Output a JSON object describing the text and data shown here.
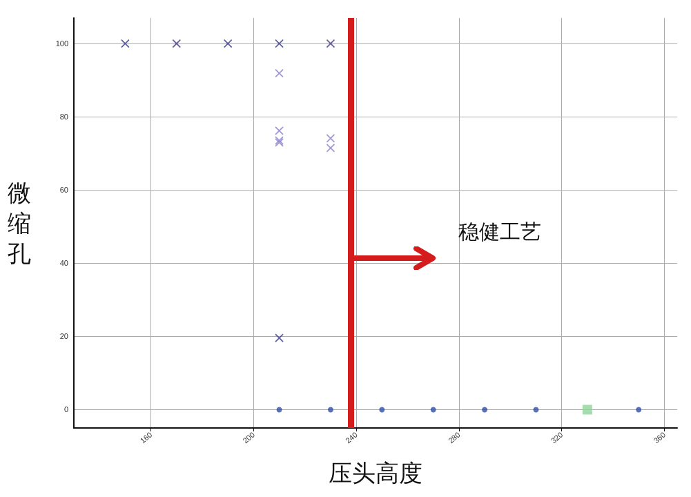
{
  "chart_data": {
    "type": "scatter",
    "xlabel": "压头高度",
    "ylabel": "微缩孔",
    "xlim": [
      130,
      365
    ],
    "xticks": [
      160,
      200,
      240,
      280,
      320,
      360
    ],
    "ylim": [
      -5,
      107
    ],
    "yticks": [
      0,
      20,
      40,
      60,
      80,
      100
    ],
    "grid": true,
    "marker": "cross",
    "series": [
      {
        "color": "#3a3a8c",
        "x": [
          150,
          170,
          190,
          210,
          230,
          210
        ],
        "values": [
          100,
          100,
          100,
          100,
          100,
          19.6
        ]
      },
      {
        "color": "#8a7fd0",
        "x": [
          210,
          210,
          210,
          210,
          230,
          230
        ],
        "values": [
          91.9,
          76.2,
          73.5,
          73.0,
          74.1,
          71.5
        ]
      },
      {
        "color": "#2f4fa8",
        "marker": "circle",
        "x": [
          210,
          230,
          250,
          270,
          290,
          310,
          350
        ],
        "values": [
          0,
          0,
          0,
          0,
          0,
          0,
          0
        ]
      },
      {
        "color": "#8fd49a",
        "marker": "square",
        "x": [
          330
        ],
        "values": [
          0
        ]
      }
    ],
    "ref_lines": [
      {
        "axis": "x",
        "value": 238,
        "color": "#d41c1c",
        "line_style": "solid"
      }
    ],
    "annotations": [
      "稳健工艺"
    ]
  }
}
